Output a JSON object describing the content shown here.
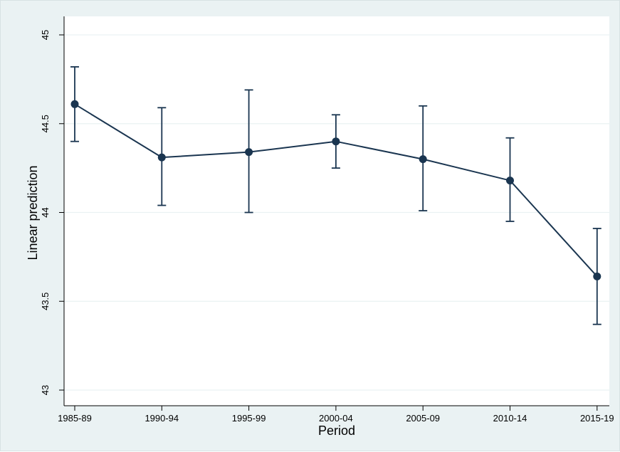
{
  "chart_data": {
    "type": "line",
    "xlabel": "Period",
    "ylabel": "Linear prediction",
    "categories": [
      "1985-89",
      "1990-94",
      "1995-99",
      "2000-04",
      "2005-09",
      "2010-14",
      "2015-19"
    ],
    "series": [
      {
        "values": [
          44.61,
          44.31,
          44.34,
          44.4,
          44.3,
          44.18,
          43.64
        ],
        "ci_lower": [
          44.4,
          44.04,
          44.0,
          44.25,
          44.01,
          43.95,
          43.37
        ],
        "ci_upper": [
          44.82,
          44.59,
          44.69,
          44.55,
          44.6,
          44.42,
          43.91
        ]
      }
    ],
    "yticks": [
      43,
      43.5,
      44,
      44.5,
      45
    ],
    "ytick_labels": [
      "43",
      "43.5",
      "44",
      "44.5",
      "45"
    ],
    "ylim": [
      43,
      45
    ],
    "grid": true,
    "colors": {
      "line": "#1a3550",
      "background": "#eaf2f3",
      "grid": "#eaf2f3"
    }
  }
}
